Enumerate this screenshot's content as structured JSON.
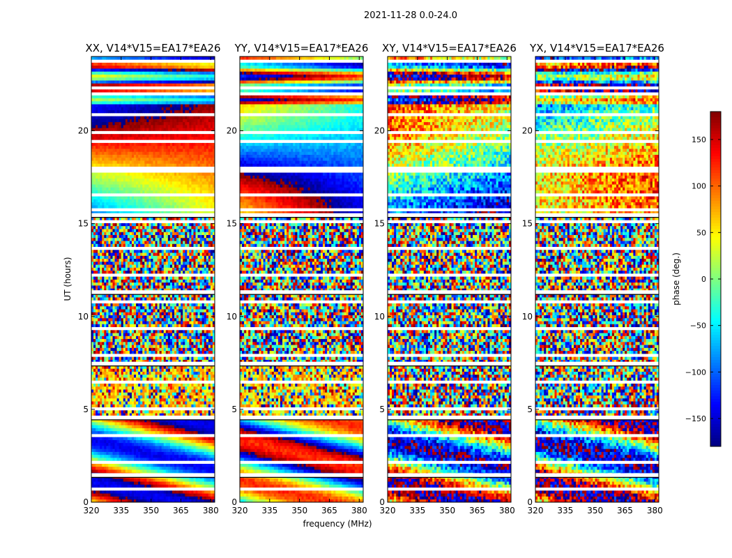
{
  "chart_data": {
    "type": "heatmap",
    "suptitle": "2021-11-28 0.0-24.0",
    "xlabel": "frequency (MHz)",
    "ylabel": "UT (hours)",
    "xlim": [
      320,
      382
    ],
    "ylim": [
      0,
      24
    ],
    "xticks": [
      320,
      335,
      350,
      365,
      380
    ],
    "yticks": [
      0,
      5,
      10,
      15,
      20
    ],
    "panels": [
      {
        "title": "XX, V14*V15=EA17*EA26",
        "pol": "XX"
      },
      {
        "title": "YY, V14*V15=EA17*EA26",
        "pol": "YY"
      },
      {
        "title": "XY, V14*V15=EA17*EA26",
        "pol": "XY"
      },
      {
        "title": "YX, V14*V15=EA17*EA26",
        "pol": "YX"
      }
    ],
    "colorbar": {
      "label": "phase (deg.)",
      "range": [
        -180,
        180
      ],
      "ticks": [
        150,
        100,
        50,
        0,
        -50,
        -100,
        -150
      ],
      "tick_labels": [
        "150",
        "100",
        "50",
        "0",
        "−50",
        "−100",
        "−150"
      ],
      "colormap": "jet"
    },
    "gaps_hours": [
      1.45,
      4.55,
      7.45,
      11.3,
      15.45
    ]
  }
}
